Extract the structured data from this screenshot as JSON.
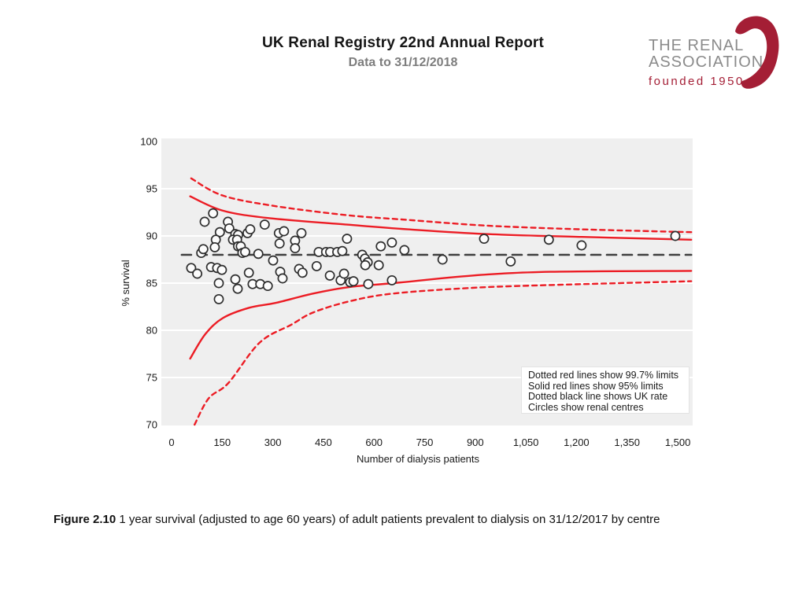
{
  "header": {
    "title": "UK Renal Registry 22nd Annual Report",
    "subtitle": "Data to 31/12/2018"
  },
  "logo": {
    "line1": "THE RENAL",
    "line2": "ASSOCIATION",
    "line3": "founded 1950",
    "brand_color": "#a41e35",
    "text_color": "#8b8b8b"
  },
  "legend": {
    "lines": [
      "Dotted red lines show 99.7% limits",
      "Solid red lines show 95% limits",
      "Dotted black line shows UK rate",
      "Circles show renal centres"
    ]
  },
  "caption": {
    "label": "Figure 2.10",
    "text": " 1 year survival (adjusted to age 60 years) of adult patients prevalent to dialysis on 31/12/2017 by centre"
  },
  "chart_data": {
    "type": "scatter",
    "title": "",
    "xlabel": "Number of dialysis patients",
    "ylabel": "% survival",
    "xlim": [
      -30,
      1544
    ],
    "ylim": [
      70,
      100
    ],
    "grid": "horizontal-white-on-gray",
    "legend_position": "lower-right",
    "xticks": {
      "values": [
        0,
        150,
        300,
        450,
        600,
        750,
        900,
        1050,
        1200,
        1350,
        1500
      ],
      "labels": [
        "0",
        "150",
        "300",
        "450",
        "600",
        "750",
        "900",
        "1,050",
        "1,200",
        "1,350",
        "1,500"
      ]
    },
    "yticks": {
      "values": [
        100,
        95,
        90,
        85,
        80,
        75,
        70
      ]
    },
    "uk_rate": 88,
    "colors": {
      "limit_line": "#ec1c24",
      "uk_rate_line": "#3f3f3f",
      "plot_bg": "#efefef",
      "gridline": "#ffffff",
      "circle_stroke": "#2e2e2e",
      "circle_fill": "#fcfcfc",
      "tick_text": "#1a1a1a"
    },
    "series": [
      {
        "name": "99.7% upper limit",
        "style": "dotted-red",
        "points": [
          [
            58,
            96.1
          ],
          [
            150,
            94.3
          ],
          [
            300,
            93.2
          ],
          [
            520,
            92.2
          ],
          [
            700,
            91.7
          ],
          [
            930,
            91.1
          ],
          [
            1215,
            90.7
          ],
          [
            1540,
            90.4
          ]
        ]
      },
      {
        "name": "95% upper limit",
        "style": "solid-red",
        "points": [
          [
            55,
            94.2
          ],
          [
            150,
            92.7
          ],
          [
            285,
            91.9
          ],
          [
            520,
            91.2
          ],
          [
            700,
            90.7
          ],
          [
            930,
            90.2
          ],
          [
            1215,
            89.9
          ],
          [
            1540,
            89.6
          ]
        ]
      },
      {
        "name": "95% lower limit",
        "style": "solid-red",
        "points": [
          [
            55,
            77.0
          ],
          [
            100,
            79.6
          ],
          [
            152,
            81.3
          ],
          [
            231,
            82.4
          ],
          [
            308,
            82.9
          ],
          [
            420,
            83.9
          ],
          [
            530,
            84.6
          ],
          [
            658,
            85.0
          ],
          [
            891,
            85.8
          ],
          [
            1124,
            86.2
          ],
          [
            1540,
            86.3
          ]
        ]
      },
      {
        "name": "99.7% lower limit",
        "style": "dotted-red",
        "points": [
          [
            68,
            70.0
          ],
          [
            110,
            72.8
          ],
          [
            168,
            74.4
          ],
          [
            261,
            78.7
          ],
          [
            355,
            80.6
          ],
          [
            420,
            81.9
          ],
          [
            530,
            83.1
          ],
          [
            658,
            83.9
          ],
          [
            891,
            84.5
          ],
          [
            1124,
            84.8
          ],
          [
            1540,
            85.2
          ]
        ]
      },
      {
        "name": "UK rate",
        "style": "dashed-black",
        "points": [
          [
            30,
            88
          ],
          [
            1540,
            88
          ]
        ]
      }
    ],
    "centres": [
      [
        123,
        92.4
      ],
      [
        98,
        91.5
      ],
      [
        167,
        91.5
      ],
      [
        171,
        90.8
      ],
      [
        143,
        90.4
      ],
      [
        189,
        90.2
      ],
      [
        197,
        90.1
      ],
      [
        225,
        90.3
      ],
      [
        233,
        90.7
      ],
      [
        276,
        91.2
      ],
      [
        318,
        90.3
      ],
      [
        333,
        90.5
      ],
      [
        385,
        90.3
      ],
      [
        131,
        89.6
      ],
      [
        128,
        88.8
      ],
      [
        88,
        88.2
      ],
      [
        94,
        88.6
      ],
      [
        182,
        89.6
      ],
      [
        194,
        89.6
      ],
      [
        197,
        88.9
      ],
      [
        205,
        88.9
      ],
      [
        210,
        88.2
      ],
      [
        218,
        88.3
      ],
      [
        257,
        88.1
      ],
      [
        301,
        87.4
      ],
      [
        320,
        89.2
      ],
      [
        366,
        89.5
      ],
      [
        366,
        88.7
      ],
      [
        436,
        88.3
      ],
      [
        458,
        88.3
      ],
      [
        470,
        88.3
      ],
      [
        491,
        88.3
      ],
      [
        506,
        88.4
      ],
      [
        520,
        89.7
      ],
      [
        620,
        88.9
      ],
      [
        653,
        89.3
      ],
      [
        690,
        88.5
      ],
      [
        565,
        88.0
      ],
      [
        573,
        87.6
      ],
      [
        581,
        87.2
      ],
      [
        574,
        86.9
      ],
      [
        614,
        86.9
      ],
      [
        430,
        86.8
      ],
      [
        469,
        85.8
      ],
      [
        501,
        85.3
      ],
      [
        511,
        86.0
      ],
      [
        529,
        85.1
      ],
      [
        539,
        85.2
      ],
      [
        583,
        84.9
      ],
      [
        653,
        85.3
      ],
      [
        803,
        87.5
      ],
      [
        926,
        89.7
      ],
      [
        1005,
        87.3
      ],
      [
        1118,
        89.6
      ],
      [
        1215,
        89.0
      ],
      [
        1493,
        90.0
      ],
      [
        58,
        86.6
      ],
      [
        76,
        86.0
      ],
      [
        117,
        86.7
      ],
      [
        135,
        86.6
      ],
      [
        149,
        86.4
      ],
      [
        140,
        85.0
      ],
      [
        189,
        85.4
      ],
      [
        196,
        84.4
      ],
      [
        229,
        86.1
      ],
      [
        240,
        84.9
      ],
      [
        263,
        84.9
      ],
      [
        285,
        84.7
      ],
      [
        322,
        86.2
      ],
      [
        329,
        85.5
      ],
      [
        378,
        86.5
      ],
      [
        388,
        86.1
      ],
      [
        140,
        83.3
      ]
    ]
  }
}
